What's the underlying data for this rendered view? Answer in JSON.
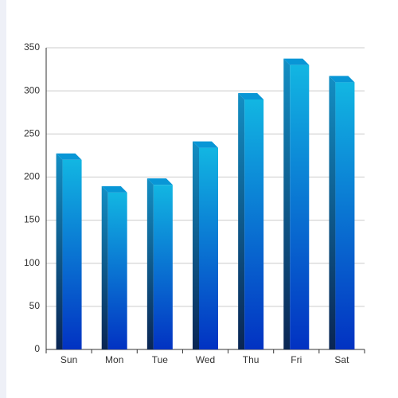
{
  "chart_data": {
    "type": "bar3d",
    "categories": [
      "Sun",
      "Mon",
      "Tue",
      "Wed",
      "Thu",
      "Fri",
      "Sat"
    ],
    "values": [
      220,
      182,
      191,
      234,
      290,
      330,
      310
    ],
    "ylim": [
      0,
      350
    ],
    "yticks": [
      0,
      50,
      100,
      150,
      200,
      250,
      300,
      350
    ],
    "grid": true
  }
}
